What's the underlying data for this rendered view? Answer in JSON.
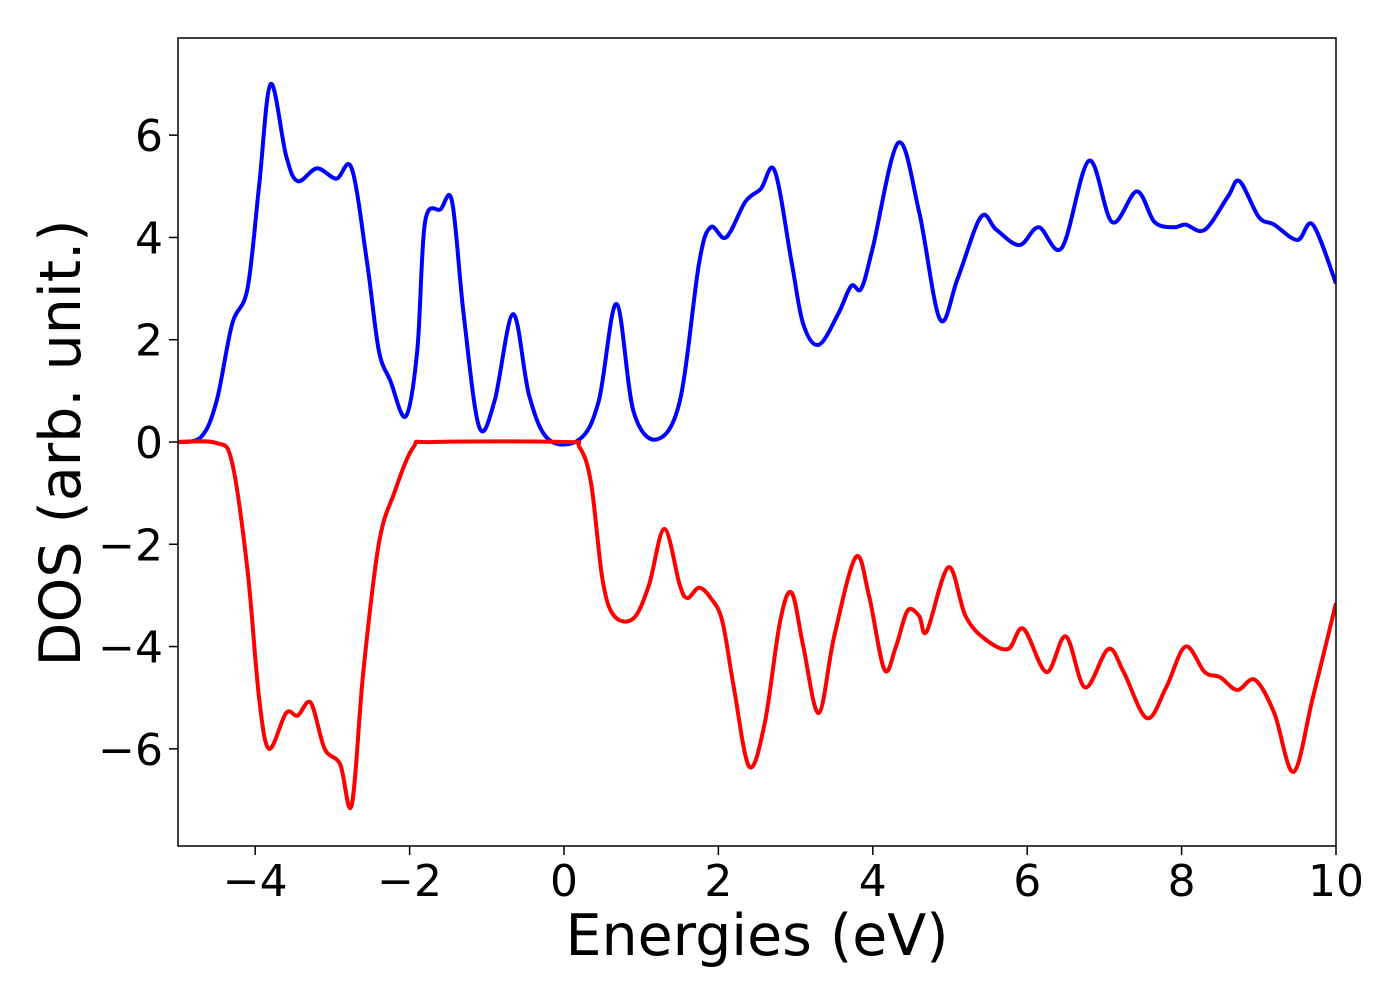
{
  "chart_data": {
    "type": "line",
    "x_label": "Energies (eV)",
    "y_label": "DOS (arb. unit.)",
    "xlim": [
      -5,
      10
    ],
    "ylim": [
      -7.9,
      7.9
    ],
    "xticks": [
      {
        "value": -4,
        "label": "−4"
      },
      {
        "value": -2,
        "label": "−2"
      },
      0,
      2,
      4,
      6,
      8,
      10
    ],
    "yticks": [
      {
        "value": -6,
        "label": "−6"
      },
      {
        "value": -4,
        "label": "−4"
      },
      {
        "value": -2,
        "label": "−2"
      },
      0,
      2,
      4,
      6
    ],
    "grid": false,
    "series": [
      {
        "color": "#0000ff",
        "x": [
          -5,
          -4.7,
          -4.5,
          -4.3,
          -4.1,
          -3.95,
          -3.8,
          -3.6,
          -3.45,
          -3.2,
          -2.95,
          -2.75,
          -2.55,
          -2.4,
          -2.25,
          -2.05,
          -1.9,
          -1.8,
          -1.6,
          -1.45,
          -1.3,
          -1.1,
          -0.9,
          -0.66,
          -0.45,
          -0.2,
          0.2,
          0.45,
          0.68,
          0.9,
          1.2,
          1.5,
          1.75,
          1.9,
          2.1,
          2.35,
          2.55,
          2.73,
          2.95,
          3.1,
          3.3,
          3.55,
          3.72,
          3.85,
          4.0,
          4.33,
          4.6,
          4.87,
          5.1,
          5.4,
          5.6,
          5.9,
          6.15,
          6.45,
          6.8,
          7.1,
          7.42,
          7.65,
          7.9,
          8.05,
          8.3,
          8.6,
          8.75,
          9.0,
          9.2,
          9.5,
          9.7,
          10
        ],
        "values": [
          0,
          0.1,
          0.8,
          2.3,
          3.0,
          5.0,
          7.0,
          5.6,
          5.1,
          5.35,
          5.15,
          5.35,
          3.5,
          1.8,
          1.2,
          0.5,
          1.8,
          4.3,
          4.55,
          4.7,
          2.5,
          0.3,
          0.8,
          2.5,
          0.9,
          0.05,
          0.05,
          0.8,
          2.7,
          0.6,
          0.05,
          0.8,
          3.5,
          4.2,
          4.0,
          4.7,
          4.95,
          5.3,
          3.5,
          2.3,
          1.9,
          2.5,
          3.05,
          3.0,
          3.8,
          5.85,
          4.5,
          2.4,
          3.2,
          4.4,
          4.15,
          3.85,
          4.2,
          3.8,
          5.5,
          4.3,
          4.9,
          4.3,
          4.2,
          4.25,
          4.15,
          4.8,
          5.1,
          4.4,
          4.25,
          3.95,
          4.25,
          3.1
        ]
      },
      {
        "color": "#ff0000",
        "x": [
          -5,
          -4.5,
          -4.3,
          -4.1,
          -3.95,
          -3.82,
          -3.6,
          -3.45,
          -3.28,
          -3.1,
          -2.9,
          -2.75,
          -2.6,
          -2.4,
          -2.2,
          -1.95,
          -1.7,
          0,
          0.2,
          0.35,
          0.5,
          0.65,
          0.9,
          1.1,
          1.3,
          1.5,
          1.6,
          1.75,
          1.9,
          2.05,
          2.2,
          2.4,
          2.6,
          2.8,
          2.95,
          3.1,
          3.3,
          3.5,
          3.78,
          3.95,
          4.15,
          4.3,
          4.45,
          4.6,
          4.7,
          4.98,
          5.2,
          5.45,
          5.75,
          5.95,
          6.25,
          6.5,
          6.75,
          7.05,
          7.25,
          7.55,
          7.8,
          8.05,
          8.3,
          8.5,
          8.72,
          8.95,
          9.2,
          9.45,
          9.7,
          10
        ],
        "values": [
          0,
          -0.02,
          -0.4,
          -2.5,
          -5.0,
          -6.0,
          -5.3,
          -5.35,
          -5.1,
          -6.0,
          -6.3,
          -7.1,
          -4.5,
          -2.0,
          -1.0,
          -0.1,
          0,
          0,
          -0.1,
          -0.8,
          -2.7,
          -3.4,
          -3.45,
          -2.8,
          -1.7,
          -2.8,
          -3.05,
          -2.85,
          -3.05,
          -3.5,
          -4.8,
          -6.35,
          -5.5,
          -3.5,
          -2.95,
          -4.0,
          -5.3,
          -3.8,
          -2.25,
          -3.0,
          -4.45,
          -4.0,
          -3.3,
          -3.4,
          -3.7,
          -2.45,
          -3.4,
          -3.85,
          -4.05,
          -3.65,
          -4.5,
          -3.8,
          -4.8,
          -4.05,
          -4.5,
          -5.4,
          -4.8,
          -4.0,
          -4.5,
          -4.6,
          -4.85,
          -4.65,
          -5.3,
          -6.45,
          -5.0,
          -3.15
        ]
      }
    ]
  }
}
